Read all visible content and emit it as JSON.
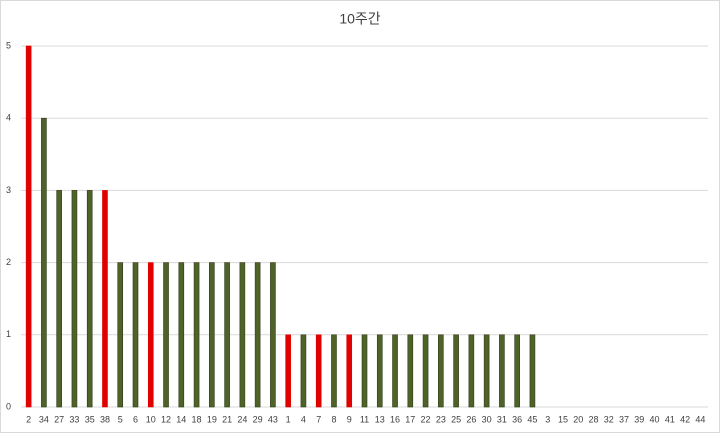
{
  "chart_data": {
    "type": "bar",
    "title": "10주간",
    "categories": [
      "2",
      "34",
      "27",
      "33",
      "35",
      "38",
      "5",
      "6",
      "10",
      "12",
      "14",
      "18",
      "19",
      "21",
      "24",
      "29",
      "43",
      "1",
      "4",
      "7",
      "8",
      "9",
      "11",
      "13",
      "16",
      "17",
      "22",
      "23",
      "25",
      "26",
      "30",
      "31",
      "36",
      "45",
      "3",
      "15",
      "20",
      "28",
      "32",
      "37",
      "39",
      "40",
      "41",
      "42",
      "44"
    ],
    "values": [
      5,
      4,
      3,
      3,
      3,
      3,
      2,
      2,
      2,
      2,
      2,
      2,
      2,
      2,
      2,
      2,
      2,
      1,
      1,
      1,
      1,
      1,
      1,
      1,
      1,
      1,
      1,
      1,
      1,
      1,
      1,
      1,
      1,
      1,
      0,
      0,
      0,
      0,
      0,
      0,
      0,
      0,
      0,
      0,
      0
    ],
    "colors": [
      "#e00000",
      "#4f6228",
      "#4f6228",
      "#4f6228",
      "#4f6228",
      "#e00000",
      "#4f6228",
      "#4f6228",
      "#e00000",
      "#4f6228",
      "#4f6228",
      "#4f6228",
      "#4f6228",
      "#4f6228",
      "#4f6228",
      "#4f6228",
      "#4f6228",
      "#e00000",
      "#4f6228",
      "#e00000",
      "#4f6228",
      "#e00000",
      "#4f6228",
      "#4f6228",
      "#4f6228",
      "#4f6228",
      "#4f6228",
      "#4f6228",
      "#4f6228",
      "#4f6228",
      "#4f6228",
      "#4f6228",
      "#4f6228",
      "#4f6228",
      "#4f6228",
      "#4f6228",
      "#4f6228",
      "#4f6228",
      "#4f6228",
      "#4f6228",
      "#4f6228",
      "#4f6228",
      "#4f6228",
      "#4f6228",
      "#4f6228"
    ],
    "ylim": [
      0,
      5
    ],
    "yticks": [
      0,
      1,
      2,
      3,
      4,
      5
    ],
    "grid": true
  }
}
